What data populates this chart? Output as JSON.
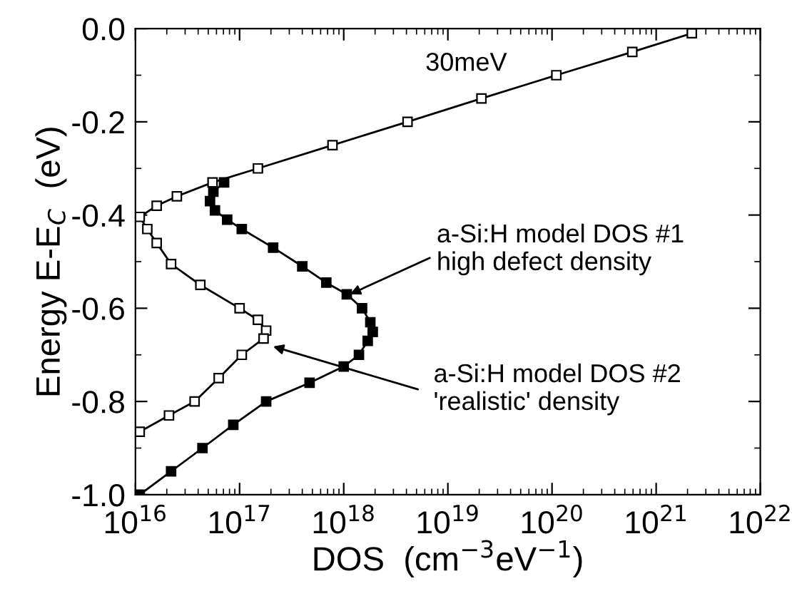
{
  "chart_data": {
    "type": "line",
    "xlabel": "DOS  (cm$^{−3}$eV$^{−1}$)",
    "ylabel": "Energy E-E$_{C}$  (eV)",
    "log": "x",
    "marker": "square",
    "line_style": "solid",
    "grid": false,
    "legend": false,
    "xlim": [
      1e+16,
      1e+22
    ],
    "ylim": [
      -1.0,
      0.0
    ],
    "xticks": [
      {
        "value": 1e+16,
        "label": "10$^{16}$"
      },
      {
        "value": 1e+17,
        "label": "10$^{17}$"
      },
      {
        "value": 1e+18,
        "label": "10$^{18}$"
      },
      {
        "value": 1e+19,
        "label": "10$^{19}$"
      },
      {
        "value": 1e+20,
        "label": "10$^{20}$"
      },
      {
        "value": 1e+21,
        "label": "10$^{21}$"
      },
      {
        "value": 1e+22,
        "label": "10$^{22}$"
      }
    ],
    "yticks": [
      {
        "value": -1.0,
        "label": "-1.0"
      },
      {
        "value": -0.8,
        "label": "-0.8"
      },
      {
        "value": -0.6,
        "label": "-0.6"
      },
      {
        "value": -0.4,
        "label": "-0.4"
      },
      {
        "value": -0.2,
        "label": "-0.2"
      },
      {
        "value": 0.0,
        "label": "0.0"
      }
    ],
    "series": [
      {
        "color": "#000000",
        "x": [
          7.1e+16,
          5.6e+16,
          5.2e+16,
          5.8e+16,
          7.6e+16,
          1.05e+17,
          2.1e+17,
          4e+17,
          6.8e+17,
          1.07e+18,
          1.5e+18,
          1.8e+18,
          1.9e+18,
          1.7e+18,
          1.4e+18,
          1e+18,
          4.7e+17,
          1.8e+17,
          8.7e+16,
          4.4e+16,
          2.2e+16,
          1.1e+16
        ],
        "values": [
          -0.33,
          -0.35,
          -0.37,
          -0.39,
          -0.41,
          -0.43,
          -0.47,
          -0.51,
          -0.545,
          -0.57,
          -0.6,
          -0.63,
          -0.651,
          -0.67,
          -0.7,
          -0.725,
          -0.76,
          -0.8,
          -0.85,
          -0.9,
          -0.95,
          -1.0
        ]
      },
      {
        "color": "#ffffff",
        "x": [
          2.2e+21,
          5.9e+20,
          1.1e+20,
          2.1e+19,
          4.1e+18,
          7.8e+17,
          1.5e+17,
          5.5e+16,
          2.5e+16,
          1.6e+16,
          1.1e+16,
          1.3e+16,
          1.6e+16,
          2.2e+16,
          4.2e+16,
          1e+17,
          1.5e+17,
          1.8e+17,
          1.7e+17,
          1.05e+17,
          6.3e+16,
          3.7e+16,
          2.1e+16,
          1.1e+16
        ],
        "values": [
          -0.01,
          -0.05,
          -0.1,
          -0.15,
          -0.2,
          -0.25,
          -0.3,
          -0.33,
          -0.36,
          -0.38,
          -0.404,
          -0.43,
          -0.46,
          -0.505,
          -0.55,
          -0.6,
          -0.625,
          -0.648,
          -0.665,
          -0.7,
          -0.75,
          -0.8,
          -0.83,
          -0.865
        ]
      }
    ],
    "annotations": [
      "30meV",
      {
        "text": "a-Si:H model DOS #1\nhigh defect density",
        "x": 1.15e+18,
        "y": -0.57
      },
      {
        "text": "a-Si:H model DOS #2\n'realistic' density",
        "x": 2.1e+17,
        "y": -0.682
      }
    ]
  }
}
